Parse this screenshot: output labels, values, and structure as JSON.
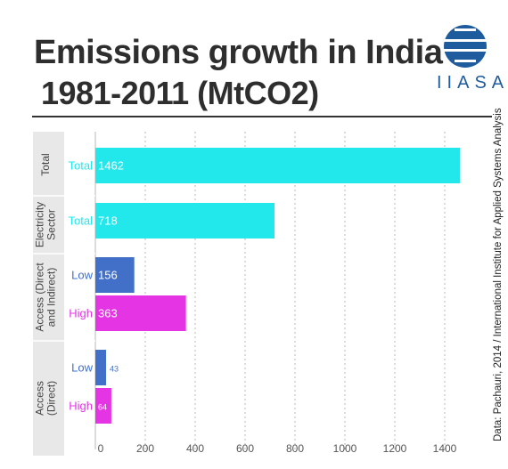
{
  "title_line1": "Emissions growth in India",
  "title_line2": "1981-2011 (MtCO2)",
  "logo_text": "IIASA",
  "source": "Data: Pachauri, 2014 / International Institute for Applied Systems Analysis",
  "colors": {
    "total": "#22e8ec",
    "low": "#4270c8",
    "high": "#e434e4",
    "band": "#e8e8e8",
    "grid": "#b8b8b8"
  },
  "chart_data": {
    "type": "bar",
    "orientation": "horizontal",
    "xlim": [
      0,
      1500
    ],
    "xticks": [
      0,
      200,
      400,
      600,
      800,
      1000,
      1200,
      1400
    ],
    "grid": true,
    "groups": [
      {
        "label": "Total",
        "bars": [
          {
            "label": "Total",
            "value": 1462,
            "color": "total"
          }
        ]
      },
      {
        "label": "Electricity Sector",
        "bars": [
          {
            "label": "Total",
            "value": 718,
            "color": "total"
          }
        ]
      },
      {
        "label": "Access (Direct and Indirect)",
        "bars": [
          {
            "label": "Low",
            "value": 156,
            "color": "low"
          },
          {
            "label": "High",
            "value": 363,
            "color": "high"
          }
        ]
      },
      {
        "label": "Access (Direct)",
        "bars": [
          {
            "label": "Low",
            "value": 43,
            "color": "low"
          },
          {
            "label": "High",
            "value": 64,
            "color": "high"
          }
        ]
      }
    ]
  }
}
